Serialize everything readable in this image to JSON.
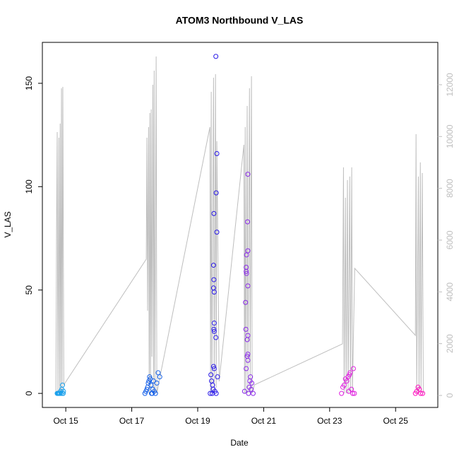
{
  "chart_data": {
    "type": "scatter",
    "title": "ATOM3 Northbound V_LAS",
    "x_label": "Date",
    "y_label": "V_LAS",
    "xlim": [
      14.29,
      26.28
    ],
    "xticks": [
      {
        "value": 15,
        "label": "Oct 15"
      },
      {
        "value": 17,
        "label": "Oct 17"
      },
      {
        "value": 19,
        "label": "Oct 19"
      },
      {
        "value": 21,
        "label": "Oct 21"
      },
      {
        "value": 23,
        "label": "Oct 23"
      },
      {
        "value": 25,
        "label": "Oct 25"
      }
    ],
    "ylim": [
      -6.8,
      169.8
    ],
    "yticks": [
      0,
      50,
      100,
      150
    ],
    "y2lim": [
      -464,
      13636
    ],
    "y2ticks": [
      0,
      2000,
      4000,
      6000,
      8000,
      10000,
      12000
    ],
    "y2_color": "#bebebe",
    "series": [
      {
        "type": "scatter",
        "color": "#1aa0ec",
        "x": [
          14.74,
          14.76,
          14.78,
          14.8,
          14.82,
          14.84,
          14.86,
          14.88,
          14.9,
          14.91,
          14.92,
          14.93
        ],
        "values": [
          0,
          0,
          0,
          0,
          0,
          1,
          0,
          2,
          4,
          0,
          0,
          1
        ]
      },
      {
        "type": "scatter",
        "color": "#1560e8",
        "x": [
          17.4,
          17.43,
          17.46,
          17.48,
          17.5,
          17.52,
          17.54,
          17.56,
          17.58,
          17.6,
          17.62,
          17.64,
          17.66,
          17.68,
          17.72,
          17.76,
          17.8,
          17.85
        ],
        "values": [
          0,
          1,
          2,
          3,
          5,
          6,
          8,
          7,
          4,
          0,
          0,
          2,
          6,
          1,
          0,
          5,
          10,
          8
        ]
      },
      {
        "type": "scatter",
        "color": "#2818e8",
        "x": [
          19.55,
          19.58,
          19.56,
          19.49,
          19.58,
          19.48,
          19.49,
          19.48,
          19.5,
          19.5,
          19.49,
          19.5,
          19.55,
          19.48,
          19.5,
          19.4,
          19.6,
          19.42,
          19.45,
          19.47,
          19.52,
          19.38,
          19.44,
          19.56
        ],
        "values": [
          163,
          116,
          97,
          87,
          78,
          62,
          55,
          51,
          49,
          34,
          31,
          30,
          27,
          13,
          12,
          9,
          8,
          6,
          4,
          2,
          1,
          0,
          0,
          0
        ]
      },
      {
        "type": "scatter",
        "color": "#8a2ae8",
        "x": [
          20.52,
          20.51,
          20.52,
          20.48,
          20.47,
          20.47,
          20.48,
          20.52,
          20.45,
          20.46,
          20.52,
          20.5,
          20.52,
          20.5,
          20.52,
          20.47,
          20.6,
          20.58,
          20.64,
          20.56,
          20.62,
          20.42,
          20.54,
          20.68
        ],
        "values": [
          106,
          83,
          69,
          67,
          61,
          59,
          58,
          52,
          44,
          31,
          28,
          26,
          19,
          18,
          16,
          12,
          8,
          6,
          5,
          3,
          2,
          1,
          0,
          0
        ]
      },
      {
        "type": "scatter",
        "color": "#e020e0",
        "x": [
          23.72,
          23.62,
          23.6,
          23.56,
          23.48,
          23.52,
          23.44,
          23.4,
          23.66,
          23.58,
          23.36,
          23.7,
          23.75
        ],
        "values": [
          12,
          10,
          9,
          8,
          7,
          6,
          4,
          3,
          2,
          1,
          0,
          0,
          0
        ]
      },
      {
        "type": "scatter",
        "color": "#ff10c0",
        "x": [
          25.68,
          25.72,
          25.64,
          25.6,
          25.76,
          25.82
        ],
        "values": [
          3,
          2,
          1,
          0,
          0,
          0
        ]
      },
      {
        "type": "line",
        "axis": "y2",
        "color": "#bebebe",
        "x": [
          14.7,
          14.72,
          14.74,
          14.76,
          14.79,
          14.81,
          14.83,
          14.85,
          14.87,
          14.89,
          14.91,
          14.94,
          17.44,
          17.46,
          17.48,
          17.51,
          17.53,
          17.55,
          17.57,
          17.59,
          17.61,
          17.64,
          17.66,
          17.68,
          17.7,
          17.74,
          17.76,
          17.85,
          19.37,
          19.39,
          19.41,
          19.43,
          19.48,
          19.5,
          19.54,
          19.56,
          19.58,
          19.65,
          20.4,
          20.42,
          20.44,
          20.46,
          20.5,
          20.52,
          20.57,
          20.59,
          20.63,
          20.65,
          20.72,
          23.39,
          23.42,
          23.44,
          23.48,
          23.5,
          23.54,
          23.56,
          23.61,
          23.63,
          23.67,
          23.69,
          23.76,
          25.6,
          25.62,
          25.64,
          25.69,
          25.71,
          25.75,
          25.77,
          25.81,
          25.84
        ],
        "values": [
          80,
          6354,
          10172,
          80,
          9954,
          80,
          10499,
          80,
          11863,
          80,
          11918,
          409,
          5263,
          9954,
          3272,
          10363,
          80,
          10908,
          80,
          11045,
          1500,
          12000,
          80,
          12545,
          80,
          13090,
          80,
          682,
          10363,
          80,
          11727,
          80,
          12272,
          80,
          12408,
          300,
          9818,
          545,
          9681,
          80,
          10363,
          80,
          11181,
          80,
          11863,
          80,
          12326,
          80,
          409,
          1991,
          8808,
          80,
          7636,
          80,
          8317,
          80,
          8454,
          80,
          8808,
          80,
          4909,
          2318,
          10090,
          80,
          8454,
          80,
          9000,
          80,
          8590,
          80
        ]
      }
    ]
  }
}
